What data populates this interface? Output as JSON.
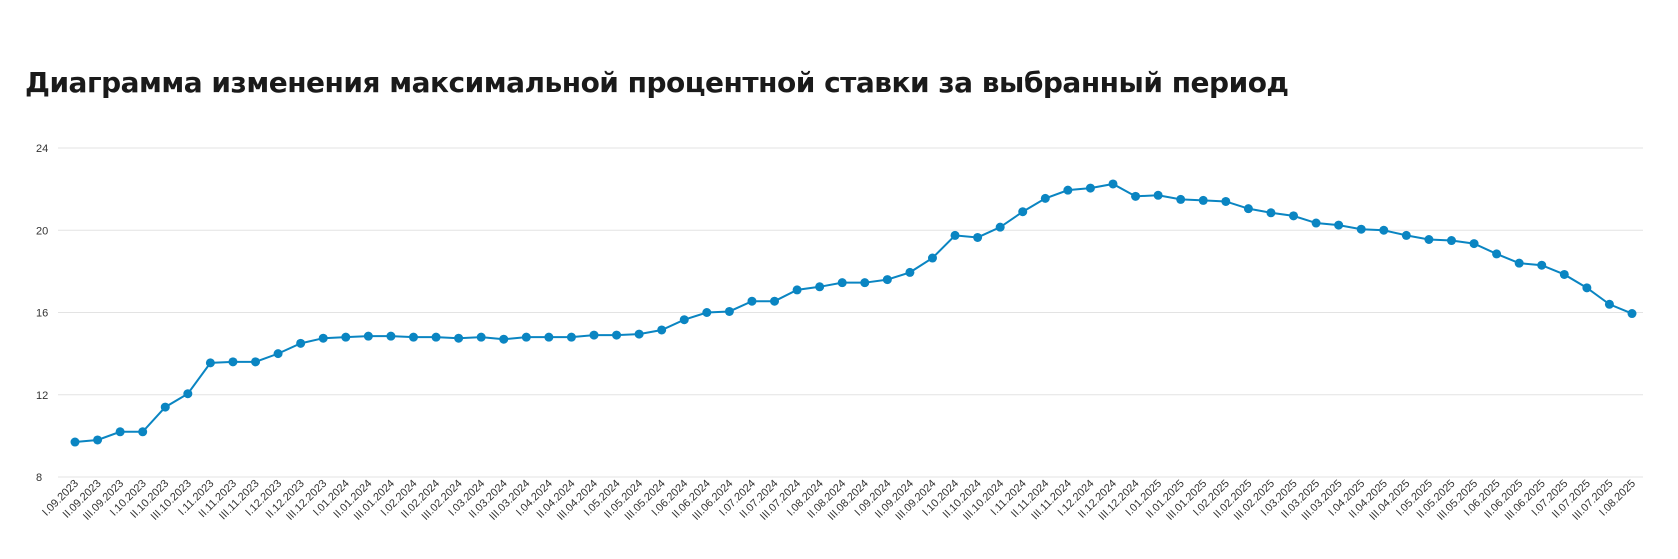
{
  "page": {
    "title": "Диаграмма изменения максимальной процентной ставки за выбранный период"
  },
  "chart_data": {
    "type": "line",
    "title": "Диаграмма изменения максимальной процентной ставки за выбранный период",
    "ylim": [
      8,
      24
    ],
    "yticks": [
      8,
      12,
      16,
      20,
      24
    ],
    "grid": true,
    "color": "#0a85c2",
    "x": [
      "I.09.2023",
      "II.09.2023",
      "III.09.2023",
      "I.10.2023",
      "II.10.2023",
      "III.10.2023",
      "I.11.2023",
      "II.11.2023",
      "III.11.2023",
      "I.12.2023",
      "II.12.2023",
      "III.12.2023",
      "I.01.2024",
      "II.01.2024",
      "III.01.2024",
      "I.02.2024",
      "II.02.2024",
      "III.02.2024",
      "I.03.2024",
      "II.03.2024",
      "III.03.2024",
      "I.04.2024",
      "II.04.2024",
      "III.04.2024",
      "I.05.2024",
      "II.05.2024",
      "III.05.2024",
      "I.06.2024",
      "II.06.2024",
      "III.06.2024",
      "I.07.2024",
      "II.07.2024",
      "III.07.2024",
      "I.08.2024",
      "II.08.2024",
      "III.08.2024",
      "I.09.2024",
      "II.09.2024",
      "III.09.2024",
      "I.10.2024",
      "II.10.2024",
      "III.10.2024",
      "I.11.2024",
      "II.11.2024",
      "III.11.2024",
      "I.12.2024",
      "II.12.2024",
      "III.12.2024",
      "I.01.2025",
      "II.01.2025",
      "III.01.2025",
      "I.02.2025",
      "II.02.2025",
      "III.02.2025",
      "I.03.2025",
      "II.03.2025",
      "III.03.2025",
      "I.04.2025",
      "II.04.2025",
      "III.04.2025",
      "I.05.2025",
      "II.05.2025",
      "III.05.2025",
      "I.06.2025",
      "II.06.2025",
      "III.06.2025",
      "I.07.2025",
      "II.07.2025",
      "III.07.2025",
      "I.08.2025"
    ],
    "series": [
      {
        "values": [
          9.7,
          9.8,
          10.2,
          10.2,
          11.4,
          12.05,
          13.55,
          13.6,
          13.6,
          14.0,
          14.5,
          14.75,
          14.8,
          14.85,
          14.85,
          14.8,
          14.8,
          14.75,
          14.8,
          14.7,
          14.8,
          14.8,
          14.8,
          14.9,
          14.9,
          14.95,
          15.15,
          15.65,
          16.0,
          16.05,
          16.55,
          16.55,
          17.1,
          17.25,
          17.45,
          17.45,
          17.6,
          17.95,
          18.65,
          19.75,
          19.65,
          20.15,
          20.9,
          21.55,
          21.95,
          22.05,
          22.25,
          21.65,
          21.7,
          21.5,
          21.45,
          21.4,
          21.05,
          20.85,
          20.7,
          20.35,
          20.25,
          20.05,
          20.0,
          19.75,
          19.55,
          19.5,
          19.35,
          18.85,
          18.4,
          18.3,
          17.85,
          17.2,
          16.4,
          15.95
        ]
      }
    ]
  }
}
